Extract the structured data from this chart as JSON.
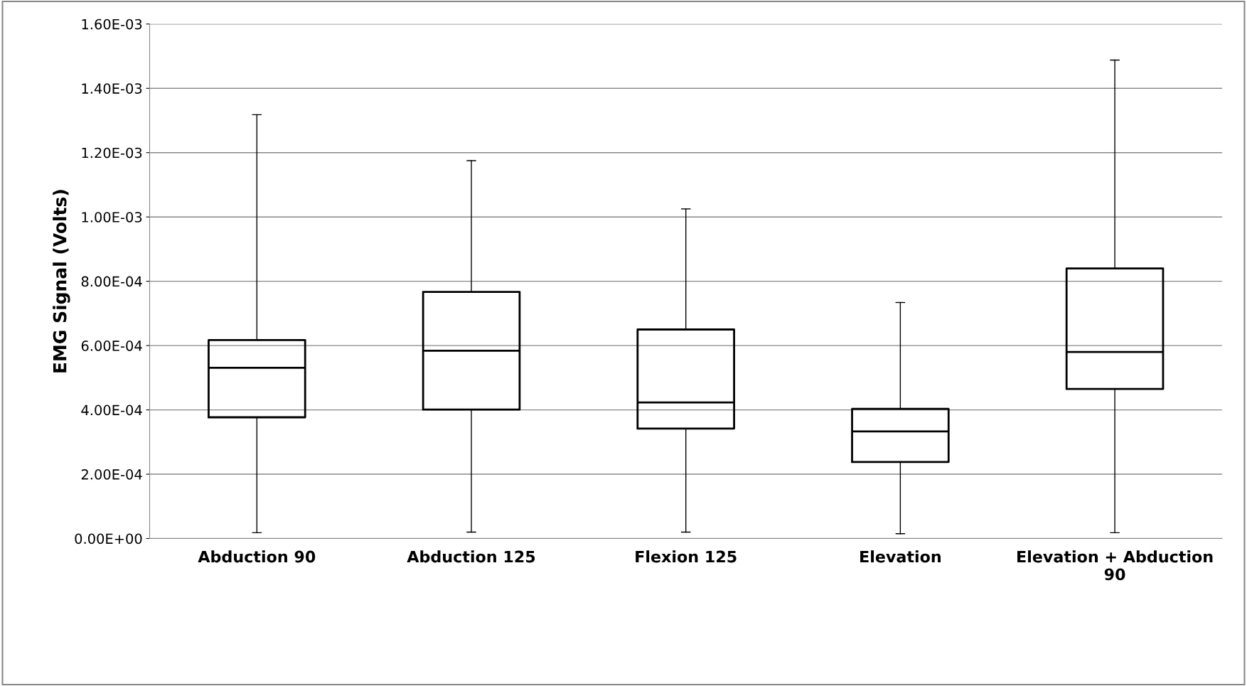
{
  "chart_data": {
    "type": "box",
    "ylabel": "EMG Signal (Volts)",
    "categories": [
      "Abduction 90",
      "Abduction 125",
      "Flexion 125",
      "Elevation",
      "Elevation + Abduction\n90"
    ],
    "boxes": [
      {
        "low": 1.8e-05,
        "q1": 0.000377,
        "median": 0.000531,
        "q3": 0.000617,
        "high": 0.001318
      },
      {
        "low": 2e-05,
        "q1": 0.000401,
        "median": 0.000584,
        "q3": 0.000767,
        "high": 0.001175
      },
      {
        "low": 2e-05,
        "q1": 0.000342,
        "median": 0.000423,
        "q3": 0.00065,
        "high": 0.001025
      },
      {
        "low": 1.5e-05,
        "q1": 0.000238,
        "median": 0.000333,
        "q3": 0.000403,
        "high": 0.000734
      },
      {
        "low": 1.8e-05,
        "q1": 0.000465,
        "median": 0.00058,
        "q3": 0.00084,
        "high": 0.001488
      }
    ],
    "color": "#000000",
    "ylim": [
      0,
      0.0016
    ],
    "yticks": [
      {
        "value": 0,
        "label": "0.00E+00"
      },
      {
        "value": 0.0002,
        "label": "2.00E-04"
      },
      {
        "value": 0.0004,
        "label": "4.00E-04"
      },
      {
        "value": 0.0006,
        "label": "6.00E-04"
      },
      {
        "value": 0.0008,
        "label": "8.00E-04"
      },
      {
        "value": 0.001,
        "label": "1.00E-03"
      },
      {
        "value": 0.0012,
        "label": "1.20E-03"
      },
      {
        "value": 0.0014,
        "label": "1.40E-03"
      },
      {
        "value": 0.0016,
        "label": "1.60E-03"
      }
    ],
    "grid": "y"
  }
}
